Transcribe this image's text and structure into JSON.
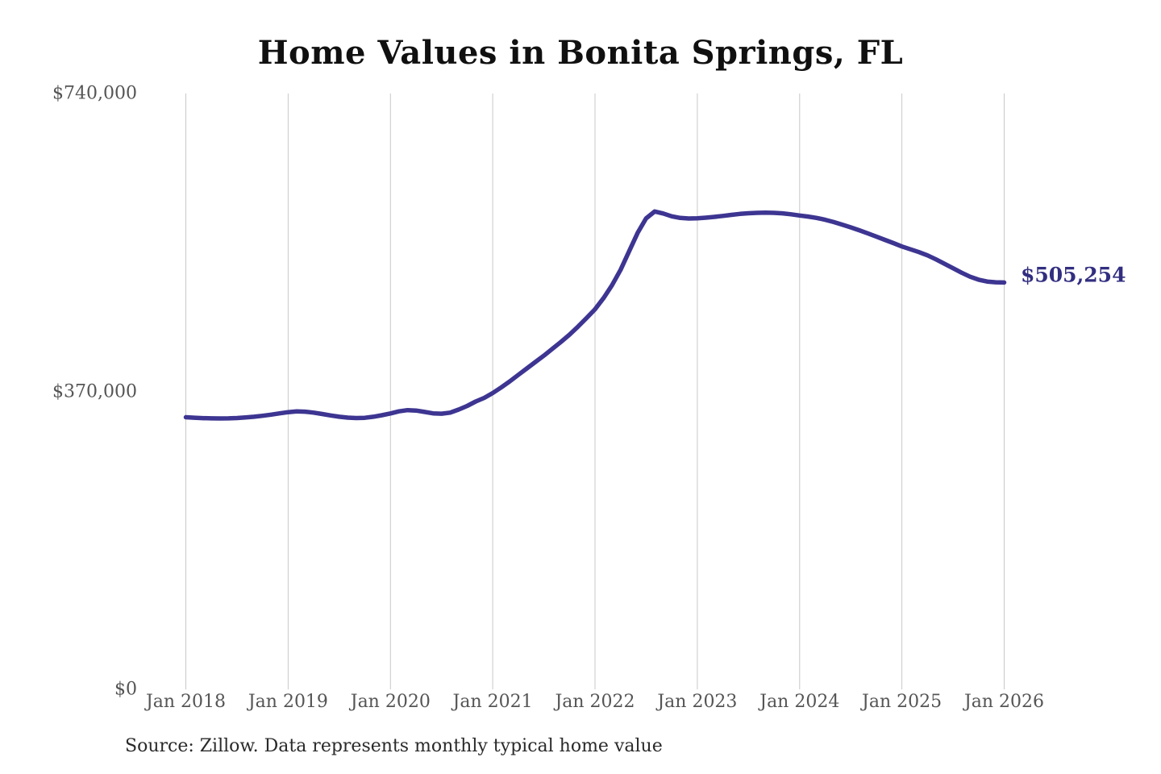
{
  "chart_data": {
    "type": "line",
    "title": "Home Values in Bonita Springs, FL",
    "source_note": "Source: Zillow. Data represents monthly typical home value",
    "end_label": "$505,254",
    "end_value": 505254,
    "x_start": "Jan 2018",
    "x_end": "Jan 2026",
    "frequency": "monthly",
    "x_tick_labels": [
      "Jan 2018",
      "Jan 2019",
      "Jan 2020",
      "Jan 2021",
      "Jan 2022",
      "Jan 2023",
      "Jan 2024",
      "Jan 2025",
      "Jan 2026"
    ],
    "y_ticks": [
      {
        "value": 0,
        "label": "$0"
      },
      {
        "value": 370000,
        "label": "$370,000"
      },
      {
        "value": 740000,
        "label": "$740,000"
      }
    ],
    "ylim": [
      0,
      740000
    ],
    "grid": "vertical-only",
    "legend": "none",
    "series": [
      {
        "name": "Typical home value",
        "values": [
          338000,
          337400,
          336900,
          336600,
          336500,
          336600,
          337000,
          337700,
          338600,
          339800,
          341200,
          342800,
          344300,
          345200,
          344900,
          343700,
          342000,
          340200,
          338600,
          337500,
          337000,
          337300,
          338600,
          340500,
          342700,
          345300,
          346800,
          346300,
          344600,
          342800,
          342400,
          343700,
          347500,
          352000,
          357500,
          362000,
          368000,
          375000,
          382500,
          390500,
          398500,
          406500,
          414500,
          423000,
          431500,
          440500,
          450500,
          461000,
          472000,
          486000,
          502000,
          521000,
          544000,
          567000,
          585000,
          593500,
          591000,
          587500,
          585500,
          584800,
          585000,
          585800,
          586800,
          588000,
          589300,
          590500,
          591300,
          591800,
          592000,
          591800,
          591200,
          590000,
          588500,
          587200,
          585500,
          583200,
          580400,
          577200,
          573800,
          570200,
          566400,
          562400,
          558300,
          554200,
          550000,
          546500,
          543000,
          539000,
          534000,
          528500,
          523000,
          517500,
          512500,
          508800,
          506500,
          505600,
          505254
        ]
      }
    ],
    "colors": {
      "line": "#3d3591",
      "end_label": "#322e80",
      "grid": "#c8c8c8",
      "tick_text": "#555555",
      "title_text": "#101010",
      "source_text": "#2a2a2a",
      "background": "#ffffff"
    }
  }
}
